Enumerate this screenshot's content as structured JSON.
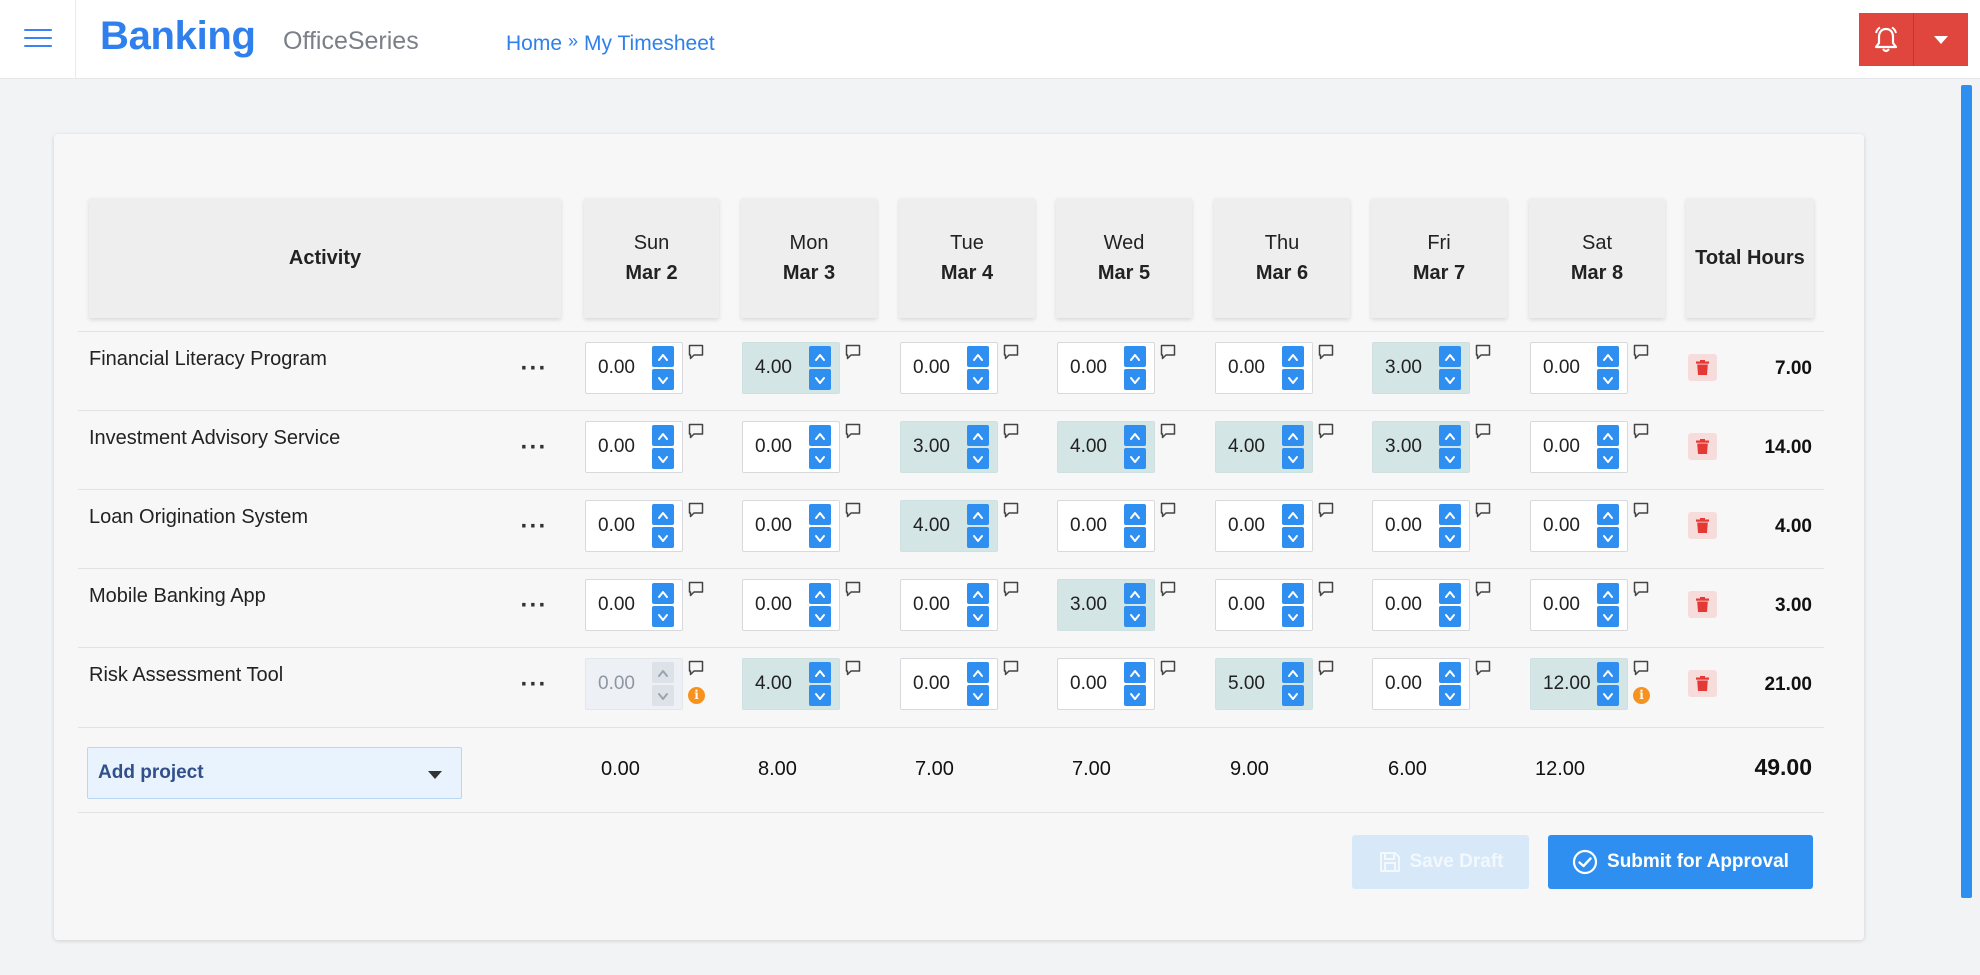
{
  "header": {
    "title": "Banking",
    "subtitle": "OfficeSeries",
    "breadcrumb": {
      "home": "Home",
      "separator": "»",
      "current": "My Timesheet"
    }
  },
  "colors": {
    "accent": "#2f80ed",
    "alert": "#e0463e",
    "filled_cell": "#d3e5e5",
    "info": "#f7921e"
  },
  "table": {
    "activity_header": "Activity",
    "total_header": "Total Hours",
    "days": [
      {
        "name": "Sun",
        "date": "Mar 2"
      },
      {
        "name": "Mon",
        "date": "Mar 3"
      },
      {
        "name": "Tue",
        "date": "Mar 4"
      },
      {
        "name": "Wed",
        "date": "Mar 5"
      },
      {
        "name": "Thu",
        "date": "Mar 6"
      },
      {
        "name": "Fri",
        "date": "Mar 7"
      },
      {
        "name": "Sat",
        "date": "Mar 8"
      }
    ],
    "rows": [
      {
        "activity": "Financial Literacy Program",
        "hours": [
          "0.00",
          "4.00",
          "0.00",
          "0.00",
          "0.00",
          "3.00",
          "0.00"
        ],
        "total": "7.00"
      },
      {
        "activity": "Investment Advisory Service",
        "hours": [
          "0.00",
          "0.00",
          "3.00",
          "4.00",
          "4.00",
          "3.00",
          "0.00"
        ],
        "total": "14.00"
      },
      {
        "activity": "Loan Origination System",
        "hours": [
          "0.00",
          "0.00",
          "4.00",
          "0.00",
          "0.00",
          "0.00",
          "0.00"
        ],
        "total": "4.00"
      },
      {
        "activity": "Mobile Banking App",
        "hours": [
          "0.00",
          "0.00",
          "0.00",
          "3.00",
          "0.00",
          "0.00",
          "0.00"
        ],
        "total": "3.00"
      },
      {
        "activity": "Risk Assessment Tool",
        "hours": [
          "0.00",
          "4.00",
          "0.00",
          "0.00",
          "5.00",
          "0.00",
          "12.00"
        ],
        "total": "21.00"
      }
    ],
    "day_totals": [
      "0.00",
      "8.00",
      "7.00",
      "7.00",
      "9.00",
      "6.00",
      "12.00"
    ],
    "grand_total": "49.00",
    "add_project_label": "Add project",
    "info_glyph": "i"
  },
  "actions": {
    "save_draft": "Save Draft",
    "submit": "Submit for Approval"
  },
  "icons": [
    "menu-icon",
    "bell-icon",
    "caret-down-icon",
    "ellipsis-icon",
    "comment-icon",
    "info-icon",
    "trash-icon",
    "save-icon",
    "check-circle-icon",
    "chevron-up-icon",
    "chevron-down-icon"
  ]
}
